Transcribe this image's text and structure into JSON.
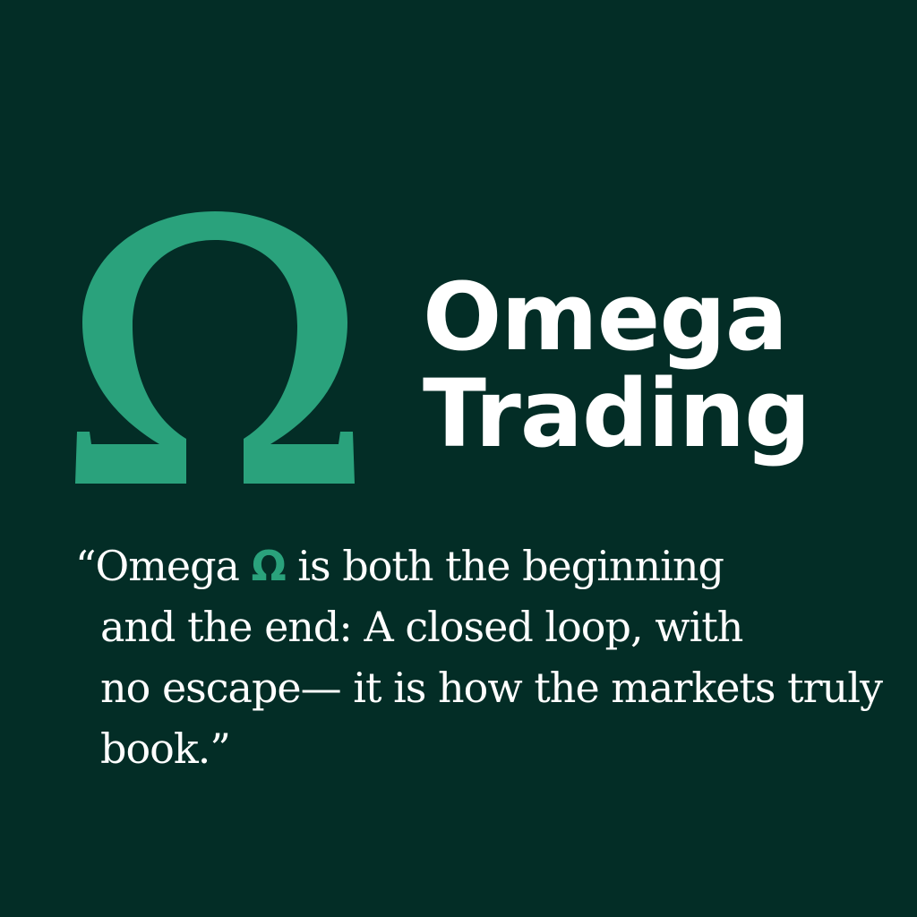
{
  "colors": {
    "background": "#032d26",
    "accent": "#2aa27c",
    "text": "#ffffff"
  },
  "logo": {
    "icon": "omega-icon"
  },
  "brand": {
    "line1": "Omega",
    "line2": "Trading"
  },
  "quote": {
    "line1_before": "“Omega ",
    "symbol": "Ω",
    "line1_after": " is both the beginning",
    "line2": "and the end: A closed loop, with",
    "line3": "no escape— it is how the markets truly",
    "line4": "book.”"
  }
}
